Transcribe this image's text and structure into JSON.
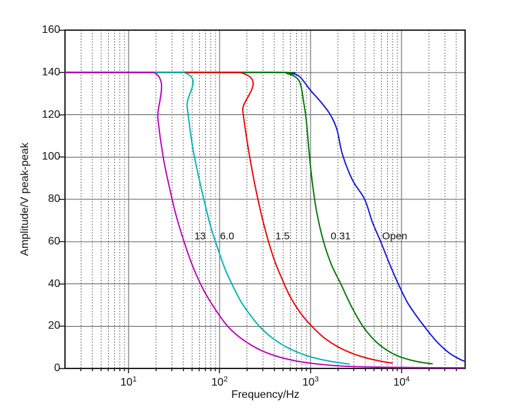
{
  "figure": {
    "background": "#ffffff"
  },
  "chart_data": {
    "type": "line",
    "title": "",
    "xlabel": "Frequency/Hz",
    "ylabel": "Amplitude/V peak-peak",
    "x_scale": "log",
    "xlim": [
      2,
      50000
    ],
    "ylim": [
      0,
      160
    ],
    "y_ticks": [
      0,
      20,
      40,
      60,
      80,
      100,
      120,
      140,
      160
    ],
    "y_tick_labels": [
      "0",
      "20",
      "40",
      "60",
      "80",
      "100",
      "120",
      "140",
      "160"
    ],
    "x_decade_ticks": [
      10,
      100,
      1000,
      10000
    ],
    "x_tick_display": [
      "10^1",
      "10^2",
      "10^3",
      "10^4"
    ],
    "grid": {
      "major_color": "#5a5a5a",
      "minor_color": "#3d3d3d",
      "minor_dash": "1.5 2.6",
      "grid_on": true
    },
    "axis_color": "#222222",
    "legend_position": "inline-annotations",
    "series": [
      {
        "name": "13",
        "color": "#bb00bb",
        "points": [
          [
            2,
            140
          ],
          [
            19,
            140
          ],
          [
            21,
            118
          ],
          [
            24,
            100
          ],
          [
            28,
            86
          ],
          [
            33,
            73
          ],
          [
            40,
            61
          ],
          [
            50,
            49
          ],
          [
            65,
            38
          ],
          [
            85,
            29.5
          ],
          [
            117,
            21
          ],
          [
            160,
            15.3
          ],
          [
            250,
            9.8
          ],
          [
            400,
            6.1
          ],
          [
            700,
            3.5
          ],
          [
            1200,
            2.1
          ],
          [
            2500,
            1.0
          ],
          [
            6000,
            0.6
          ],
          [
            15000,
            0.4
          ],
          [
            50000,
            0.3
          ]
        ]
      },
      {
        "name": "6.0",
        "color": "#00b2b2",
        "points": [
          [
            2,
            140
          ],
          [
            40,
            140
          ],
          [
            44,
            124
          ],
          [
            50,
            106
          ],
          [
            58,
            92
          ],
          [
            68,
            79
          ],
          [
            80,
            67
          ],
          [
            95,
            57
          ],
          [
            115,
            47
          ],
          [
            140,
            39
          ],
          [
            175,
            31
          ],
          [
            220,
            25
          ],
          [
            280,
            19.5
          ],
          [
            380,
            14.4
          ],
          [
            550,
            10
          ],
          [
            900,
            6.1
          ],
          [
            1500,
            3.7
          ],
          [
            2700,
            2.0
          ]
        ]
      },
      {
        "name": "1.5",
        "color": "#ee0000",
        "points": [
          [
            2,
            140
          ],
          [
            165,
            140
          ],
          [
            180,
            122
          ],
          [
            200,
            108
          ],
          [
            225,
            95
          ],
          [
            255,
            83
          ],
          [
            295,
            71
          ],
          [
            345,
            60
          ],
          [
            410,
            50
          ],
          [
            490,
            42
          ],
          [
            580,
            35
          ],
          [
            700,
            29
          ],
          [
            850,
            24
          ],
          [
            1050,
            19.6
          ],
          [
            1400,
            14.6
          ],
          [
            2000,
            10.2
          ],
          [
            3000,
            6.8
          ],
          [
            4500,
            4.5
          ],
          [
            6500,
            3.1
          ],
          [
            8000,
            2.5
          ]
        ]
      },
      {
        "name": "0.31",
        "color": "#007700",
        "points": [
          [
            2,
            140
          ],
          [
            400,
            140
          ],
          [
            550,
            139.5
          ],
          [
            700,
            137.5
          ],
          [
            780,
            134
          ],
          [
            840,
            126
          ],
          [
            900,
            117
          ],
          [
            975,
            100
          ],
          [
            1060,
            86
          ],
          [
            1180,
            73
          ],
          [
            1390,
            60
          ],
          [
            1700,
            49
          ],
          [
            2150,
            40
          ],
          [
            2800,
            29.5
          ],
          [
            3750,
            20
          ],
          [
            5000,
            13.5
          ],
          [
            6700,
            9
          ],
          [
            9000,
            6
          ],
          [
            12500,
            4
          ],
          [
            17500,
            2.7
          ],
          [
            22000,
            2.2
          ]
        ]
      },
      {
        "name": "Open",
        "color": "#1414dd",
        "points": [
          [
            2,
            140
          ],
          [
            400,
            140
          ],
          [
            600,
            139.5
          ],
          [
            760,
            138
          ],
          [
            1000,
            131.5
          ],
          [
            1300,
            126
          ],
          [
            1650,
            120
          ],
          [
            1950,
            113
          ],
          [
            2250,
            101
          ],
          [
            2900,
            89
          ],
          [
            3930,
            80
          ],
          [
            4800,
            69
          ],
          [
            5900,
            60
          ],
          [
            7300,
            50
          ],
          [
            9200,
            40
          ],
          [
            11500,
            31.5
          ],
          [
            14500,
            25
          ],
          [
            17700,
            20
          ],
          [
            24000,
            13
          ],
          [
            33000,
            7.5
          ],
          [
            43000,
            4.5
          ],
          [
            50000,
            3.3
          ]
        ]
      }
    ],
    "draw_order": [
      "Open",
      "0.31",
      "1.5",
      "6.0",
      "13"
    ],
    "annotations": [
      {
        "text": "13",
        "f": 61,
        "v": 62.5
      },
      {
        "text": "6.0",
        "f": 121,
        "v": 62.5
      },
      {
        "text": "1.5",
        "f": 492,
        "v": 62.5
      },
      {
        "text": "0.31",
        "f": 2140,
        "v": 62.5
      },
      {
        "text": "Open",
        "f": 8400,
        "v": 62.5
      }
    ]
  }
}
